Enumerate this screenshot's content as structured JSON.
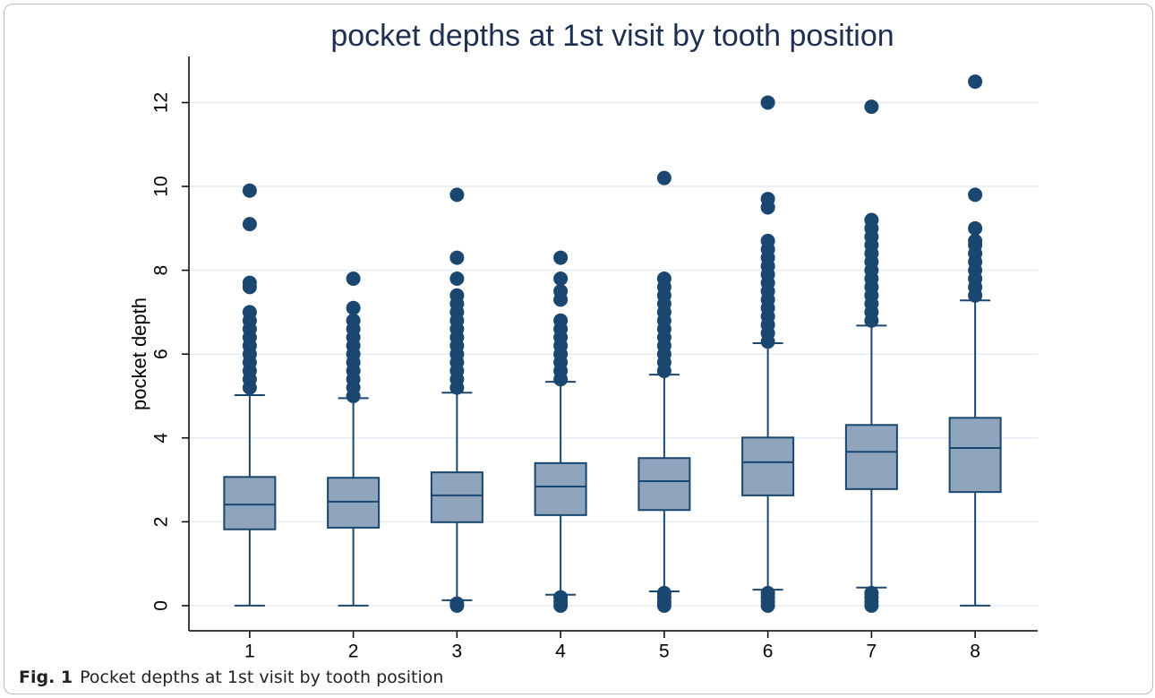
{
  "chart_data": {
    "type": "box",
    "title": "pocket depths at 1st visit by tooth position",
    "ylabel": "pocket depth",
    "caption_label": "Fig. 1",
    "caption": "Pocket depths at 1st visit by tooth position",
    "categories": [
      "1",
      "2",
      "3",
      "4",
      "5",
      "6",
      "7",
      "8"
    ],
    "color": "#8ea5bd",
    "edge_color": "#1a476f",
    "ylim": [
      -0.6,
      13.1
    ],
    "yticks": [
      0,
      2,
      4,
      6,
      8,
      10,
      12
    ],
    "grid": true,
    "boxes": [
      {
        "whislo": 0,
        "q1": 1.82,
        "med": 2.41,
        "q3": 3.07,
        "whishi": 5.02,
        "fliers": [
          5.2,
          5.4,
          5.6,
          5.8,
          6.0,
          6.2,
          6.4,
          6.6,
          6.8,
          7.0,
          7.6,
          7.7,
          9.1,
          9.9
        ]
      },
      {
        "whislo": 0,
        "q1": 1.86,
        "med": 2.48,
        "q3": 3.05,
        "whishi": 4.95,
        "fliers": [
          5.0,
          5.2,
          5.4,
          5.6,
          5.8,
          6.0,
          6.2,
          6.4,
          6.6,
          6.8,
          7.1,
          7.8
        ]
      },
      {
        "whislo": 0.13,
        "q1": 1.99,
        "med": 2.63,
        "q3": 3.18,
        "whishi": 5.08,
        "fliers": [
          0,
          0.05,
          5.2,
          5.4,
          5.6,
          5.8,
          6.0,
          6.2,
          6.4,
          6.6,
          6.8,
          7.0,
          7.2,
          7.4,
          7.8,
          8.3,
          9.8
        ]
      },
      {
        "whislo": 0.26,
        "q1": 2.16,
        "med": 2.84,
        "q3": 3.4,
        "whishi": 5.34,
        "fliers": [
          0,
          0.1,
          0.2,
          5.4,
          5.6,
          5.8,
          6.0,
          6.2,
          6.4,
          6.6,
          6.8,
          7.3,
          7.5,
          7.8,
          8.3
        ]
      },
      {
        "whislo": 0.34,
        "q1": 2.28,
        "med": 2.97,
        "q3": 3.52,
        "whishi": 5.51,
        "fliers": [
          0,
          0.1,
          0.2,
          0.3,
          5.6,
          5.8,
          6.0,
          6.2,
          6.4,
          6.6,
          6.8,
          7.0,
          7.2,
          7.4,
          7.6,
          7.8,
          10.2
        ]
      },
      {
        "whislo": 0.38,
        "q1": 2.63,
        "med": 3.42,
        "q3": 4.01,
        "whishi": 6.26,
        "fliers": [
          0,
          0.1,
          0.2,
          0.3,
          6.3,
          6.5,
          6.7,
          6.9,
          7.1,
          7.3,
          7.5,
          7.7,
          7.9,
          8.1,
          8.3,
          8.5,
          8.7,
          9.5,
          9.7,
          12.0
        ]
      },
      {
        "whislo": 0.43,
        "q1": 2.78,
        "med": 3.67,
        "q3": 4.31,
        "whishi": 6.68,
        "fliers": [
          0,
          0.1,
          0.2,
          0.3,
          6.8,
          7.0,
          7.2,
          7.4,
          7.6,
          7.8,
          8.0,
          8.2,
          8.4,
          8.6,
          8.8,
          9.0,
          9.2,
          11.9
        ]
      },
      {
        "whislo": 0,
        "q1": 2.71,
        "med": 3.76,
        "q3": 4.48,
        "whishi": 7.28,
        "fliers": [
          7.4,
          7.6,
          7.8,
          8.0,
          8.2,
          8.4,
          8.6,
          8.7,
          9.0,
          9.8,
          12.5
        ]
      }
    ]
  }
}
